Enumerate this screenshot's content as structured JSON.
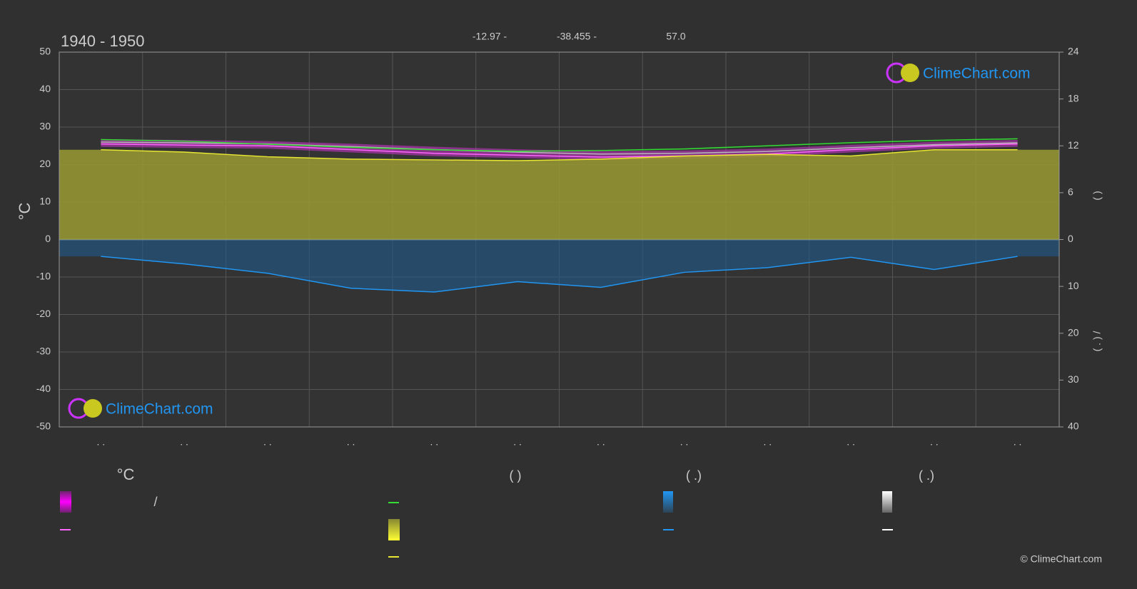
{
  "chart_data": {
    "type": "line",
    "title": "1940 - 1950",
    "header_values": [
      "-12.97 -",
      "-38.455 -",
      "57.0"
    ],
    "y_label": "°C",
    "y2_label": "(   )",
    "y3_label": "( . )   /",
    "categories": [
      ". .",
      ". .",
      ". .",
      ". .",
      ". .",
      ". .",
      ". .",
      ". .",
      ". .",
      ". .",
      ". .",
      ". ."
    ],
    "ylim": [
      -50,
      50
    ],
    "yticks": [
      -50,
      -40,
      -30,
      -20,
      -10,
      0,
      10,
      20,
      30,
      40,
      50
    ],
    "y2lim": [
      0,
      24
    ],
    "y2ticks": [
      0,
      6,
      12,
      18,
      24
    ],
    "y3lim": [
      0,
      40
    ],
    "y3ticks": [
      10,
      20,
      30,
      40
    ],
    "grid": true,
    "series": [
      {
        "color": "#b8b8b8",
        "values": [
          26.0,
          25.8,
          25.5,
          24.8,
          24.0,
          23.3,
          22.8,
          23.0,
          23.5,
          24.5,
          25.3,
          25.8
        ]
      },
      {
        "color": "#ff66ff",
        "values": [
          25.5,
          25.2,
          25.0,
          24.0,
          23.0,
          22.5,
          22.0,
          22.3,
          22.8,
          24.0,
          25.0,
          25.5
        ]
      },
      {
        "color": "#33dd33",
        "axis": "y2",
        "values": [
          12.8,
          12.6,
          12.2,
          11.8,
          11.5,
          11.3,
          11.4,
          11.6,
          12.0,
          12.4,
          12.7,
          12.9
        ]
      },
      {
        "color": "#e6e633",
        "axis": "y2",
        "area": true,
        "values": [
          11.5,
          11.2,
          10.6,
          10.3,
          10.2,
          10.1,
          10.3,
          10.7,
          10.9,
          10.7,
          11.5,
          11.5
        ]
      },
      {
        "color": "#2196f3",
        "axis": "y3",
        "values": [
          3.6,
          5.2,
          7.2,
          10.4,
          11.2,
          9.0,
          10.2,
          7.0,
          6.0,
          3.8,
          6.4,
          3.6
        ]
      }
    ],
    "legend_texts": [
      "°C",
      "(          )",
      "(   .)",
      "(   .)",
      "/"
    ],
    "watermark": "ClimeChart.com",
    "copyright": "© ClimeChart.com"
  }
}
